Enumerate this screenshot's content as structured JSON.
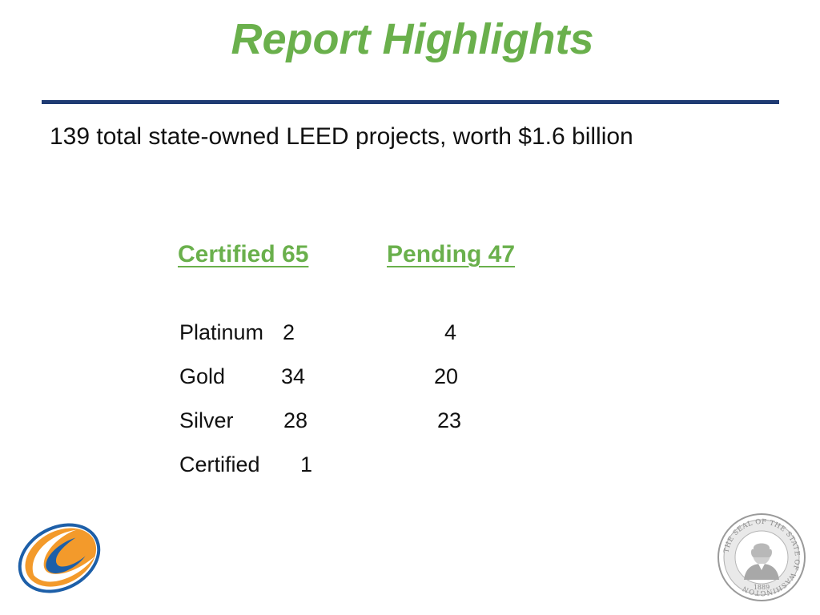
{
  "title": "Report Highlights",
  "summary": "139 total state-owned LEED projects, worth $1.6 billion",
  "columns": {
    "certified": "Certified 65",
    "pending": "Pending 47"
  },
  "rows": [
    {
      "level": "Platinum",
      "certified": "2",
      "pending": "4"
    },
    {
      "level": "Gold",
      "certified": "34",
      "pending": "20"
    },
    {
      "level": "Silver",
      "certified": "28",
      "pending": "23"
    },
    {
      "level": "Certified",
      "certified": "1",
      "pending": ""
    }
  ],
  "seal": {
    "text": "THE SEAL OF THE STATE OF WASHINGTON",
    "year": "1889"
  },
  "colors": {
    "title_green": "#6ab04c",
    "rule_navy": "#1f3b73",
    "logo_orange": "#f39a2b",
    "logo_blue": "#1d5fa8"
  },
  "icons": {
    "left_logo": "orange-swoosh-logo-icon",
    "right_logo": "washington-state-seal-icon"
  }
}
